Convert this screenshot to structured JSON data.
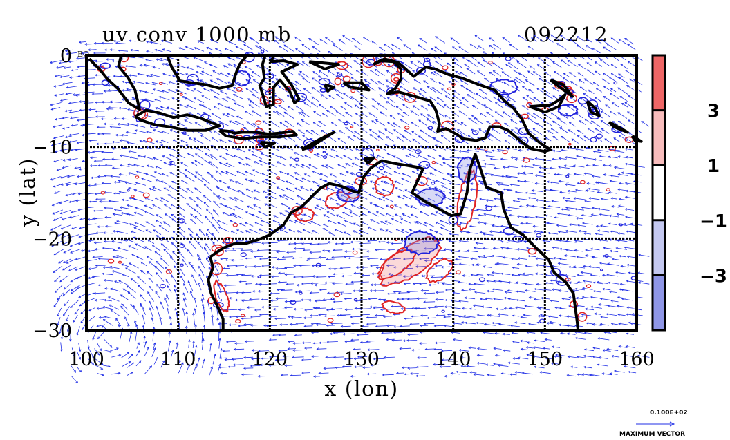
{
  "chart_data": {
    "type": "contour",
    "title_left": "uv conv 1000 mb",
    "title_right": "092212",
    "xlabel": "x (lon)",
    "ylabel": "y (lat)",
    "xlim": [
      100,
      160
    ],
    "ylim": [
      -30,
      0
    ],
    "xticks": [
      {
        "value": 100,
        "label": "100"
      },
      {
        "value": 110,
        "label": "110"
      },
      {
        "value": 120,
        "label": "120"
      },
      {
        "value": 130,
        "label": "130"
      },
      {
        "value": 140,
        "label": "140"
      },
      {
        "value": 150,
        "label": "150"
      },
      {
        "value": 160,
        "label": "160"
      }
    ],
    "yticks": [
      {
        "value": 0,
        "label": "0"
      },
      {
        "value": -10,
        "label": "−10"
      },
      {
        "value": -20,
        "label": "−20"
      },
      {
        "value": -30,
        "label": "−30"
      }
    ],
    "corner_label": "EQ",
    "grid": true,
    "colorbar": {
      "levels": [
        5,
        3,
        1,
        -1,
        -3,
        -5
      ],
      "labels": [
        {
          "value": 3,
          "text": "3"
        },
        {
          "value": 1,
          "text": "1"
        },
        {
          "value": -1,
          "text": "−1"
        },
        {
          "value": -3,
          "text": "−3"
        }
      ],
      "fills": [
        "#ee6666",
        "#f7bcbc",
        "#ffffff",
        "#c4c8f0",
        "#8f96e6"
      ]
    },
    "vector_legend": {
      "magnitude_label": "0.100E+02",
      "caption": "MAXIMUM VECTOR"
    },
    "colors": {
      "coast": "#000000",
      "vector": "#1f2ee6",
      "contour_pos": "#e02424",
      "contour_neg": "#2222dd"
    }
  }
}
